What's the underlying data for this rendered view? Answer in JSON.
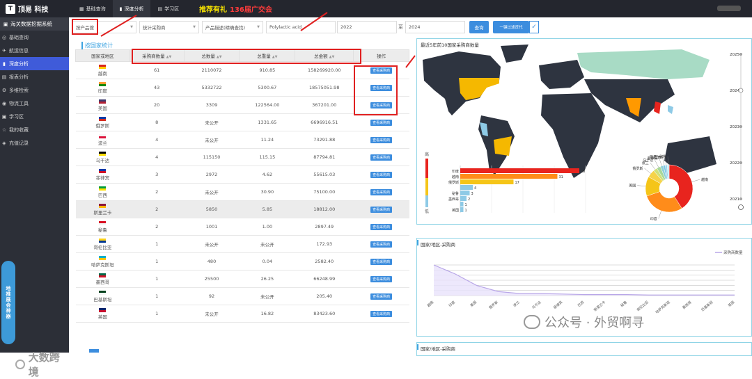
{
  "app": {
    "logo_mark": "T",
    "title": "顶易 科技",
    "user_name": ""
  },
  "topnav": [
    {
      "label": "基础查询",
      "icon": "grid-icon",
      "glyph": "▦"
    },
    {
      "label": "深度分析",
      "icon": "chart-icon",
      "glyph": "▮"
    },
    {
      "label": "学习区",
      "icon": "book-icon",
      "glyph": "▤"
    }
  ],
  "promo": {
    "text1": "推荐有礼",
    "text2": "136届广交会"
  },
  "sidebar": {
    "header": "海关数据挖掘系统",
    "items": [
      {
        "label": "基础查询",
        "icon": "search-icon",
        "glyph": "◎",
        "active": false
      },
      {
        "label": "航运信息",
        "icon": "plane-icon",
        "glyph": "✈",
        "active": false
      },
      {
        "label": "深度分析",
        "icon": "chart-icon",
        "glyph": "▮",
        "active": true
      },
      {
        "label": "报表分析",
        "icon": "report-icon",
        "glyph": "▤",
        "active": false
      },
      {
        "label": "多维检索",
        "icon": "filter-icon",
        "glyph": "⚙",
        "active": false
      },
      {
        "label": "物流工具",
        "icon": "truck-icon",
        "glyph": "◉",
        "active": false
      },
      {
        "label": "学习区",
        "icon": "book-icon",
        "glyph": "▣",
        "active": false
      },
      {
        "label": "我的收藏",
        "icon": "star-icon",
        "glyph": "☆",
        "active": false
      },
      {
        "label": "充值记录",
        "icon": "wallet-icon",
        "glyph": "◈",
        "active": false
      }
    ],
    "widget_label": "地推展会神器",
    "watermark": "大数跨境"
  },
  "filters": {
    "mode": "按产品搜",
    "stat_type": "统计采购商",
    "desc_type": "产品描述(精确查找)",
    "keyword": "Polylactic acid",
    "year_from": "2022",
    "to_label": "至",
    "year_to": "2024",
    "query_button": "查询",
    "filter_button": "一键过滤货代"
  },
  "table": {
    "section_title": "按国家统计",
    "headers": [
      "国家或地区",
      "采购商数量",
      "总数量",
      "总重量",
      "总金额",
      "操作"
    ],
    "action_label": "查看采购商",
    "rows": [
      {
        "country": "越南",
        "buyers": "61",
        "qty": "2110072",
        "weight": "910.85",
        "amount": "158269920.00",
        "flag": [
          "#da251d",
          "#ffcd00"
        ]
      },
      {
        "country": "印度",
        "buyers": "43",
        "qty": "5332722",
        "weight": "5300.67",
        "amount": "18575051.98",
        "flag": [
          "#ff9933",
          "#138808"
        ]
      },
      {
        "country": "美国",
        "buyers": "20",
        "qty": "3309",
        "weight": "122564.00",
        "amount": "367201.00",
        "flag": [
          "#3c3b6e",
          "#b22234"
        ]
      },
      {
        "country": "俄罗斯",
        "buyers": "8",
        "qty": "未公开",
        "weight": "1331.65",
        "amount": "6696916.51",
        "flag": [
          "#0039a6",
          "#d52b1e"
        ]
      },
      {
        "country": "波兰",
        "buyers": "4",
        "qty": "未公开",
        "weight": "11.24",
        "amount": "73291.88",
        "flag": [
          "#f5f5f5",
          "#dc143c"
        ]
      },
      {
        "country": "乌干达",
        "buyers": "4",
        "qty": "115150",
        "weight": "115.15",
        "amount": "87794.81",
        "flag": [
          "#000000",
          "#fcdc04"
        ]
      },
      {
        "country": "菲律宾",
        "buyers": "3",
        "qty": "2972",
        "weight": "4.62",
        "amount": "55615.03",
        "flag": [
          "#0038a8",
          "#ce1126"
        ]
      },
      {
        "country": "巴西",
        "buyers": "2",
        "qty": "未公开",
        "weight": "30.90",
        "amount": "75100.00",
        "flag": [
          "#009c3b",
          "#ffdf00"
        ]
      },
      {
        "country": "斯里兰卡",
        "buyers": "2",
        "qty": "5850",
        "weight": "5.85",
        "amount": "18812.00",
        "flag": [
          "#8d153a",
          "#ffb700"
        ]
      },
      {
        "country": "秘鲁",
        "buyers": "2",
        "qty": "1001",
        "weight": "1.00",
        "amount": "2897.49",
        "flag": [
          "#d91023",
          "#f5f5f5"
        ]
      },
      {
        "country": "哥伦比亚",
        "buyers": "1",
        "qty": "未公开",
        "weight": "未公开",
        "amount": "172.93",
        "flag": [
          "#fcd116",
          "#003893"
        ]
      },
      {
        "country": "哈萨克斯坦",
        "buyers": "1",
        "qty": "480",
        "weight": "0.04",
        "amount": "2582.40",
        "flag": [
          "#00afca",
          "#fec50c"
        ]
      },
      {
        "country": "墨西哥",
        "buyers": "1",
        "qty": "25500",
        "weight": "26.25",
        "amount": "66248.99",
        "flag": [
          "#006847",
          "#ce1126"
        ]
      },
      {
        "country": "巴基斯坦",
        "buyers": "1",
        "qty": "92",
        "weight": "未公开",
        "amount": "205.40",
        "flag": [
          "#01411c",
          "#f5f5f5"
        ]
      },
      {
        "country": "英国",
        "buyers": "1",
        "qty": "未公开",
        "weight": "16.82",
        "amount": "83423.60",
        "flag": [
          "#012169",
          "#c8102e"
        ]
      }
    ]
  },
  "map_card": {
    "title": "最近5年前10国家采购商数量",
    "legend_high": "高",
    "legend_low": "低",
    "timeline_years": [
      "2025",
      "2024",
      "2023",
      "2022",
      "2021"
    ],
    "selected_year": "2024"
  },
  "bar_chart": {
    "chart_data": {
      "type": "bar",
      "orientation": "horizontal",
      "categories": [
        "印度",
        "越南",
        "俄罗斯",
        "",
        "秘鲁",
        "墨西哥",
        "",
        "英国"
      ],
      "values": [
        38,
        31,
        17,
        4,
        3,
        2,
        1,
        1
      ],
      "xlim": [
        0,
        40
      ]
    }
  },
  "pie_chart": {
    "chart_data": {
      "type": "pie",
      "labels": [
        "越南",
        "印度",
        "美国",
        "俄罗斯",
        "波兰",
        "乌干达",
        "菲律宾",
        "巴西",
        "斯里兰卡",
        "秘鲁"
      ],
      "values": [
        61,
        43,
        20,
        8,
        4,
        4,
        3,
        2,
        2,
        2
      ],
      "colors": [
        "#e8241e",
        "#ff8c1a",
        "#f5c518",
        "#f5d34a",
        "#cfe07a",
        "#a7d89a",
        "#8fcfd8",
        "#7cc4e4",
        "#9ed6ea",
        "#bfe6f2"
      ]
    }
  },
  "line_card": {
    "title": "国家/地区-采购商",
    "legend": "采购商数量",
    "chart_data": {
      "type": "line",
      "categories": [
        "越南",
        "印度",
        "美国",
        "俄罗斯",
        "波兰",
        "乌干达",
        "菲律宾",
        "巴西",
        "斯里兰卡",
        "秘鲁",
        "哥伦比亚",
        "哈萨克斯坦",
        "墨西哥",
        "巴基斯坦",
        "英国"
      ],
      "series": [
        {
          "name": "采购商数量",
          "values": [
            61,
            43,
            20,
            8,
            4,
            4,
            3,
            2,
            2,
            2,
            1,
            1,
            1,
            1,
            1
          ]
        }
      ]
    }
  },
  "bottom_card": {
    "title": "国家/地区-采购商"
  },
  "watermark": {
    "text": "公众号 · 外贸啊寻"
  },
  "colors": {
    "accent": "#3c8dde",
    "sidebar_bg": "#2c2f37",
    "topbar_bg": "#24262e",
    "active_nav": "#3f5bd9"
  }
}
